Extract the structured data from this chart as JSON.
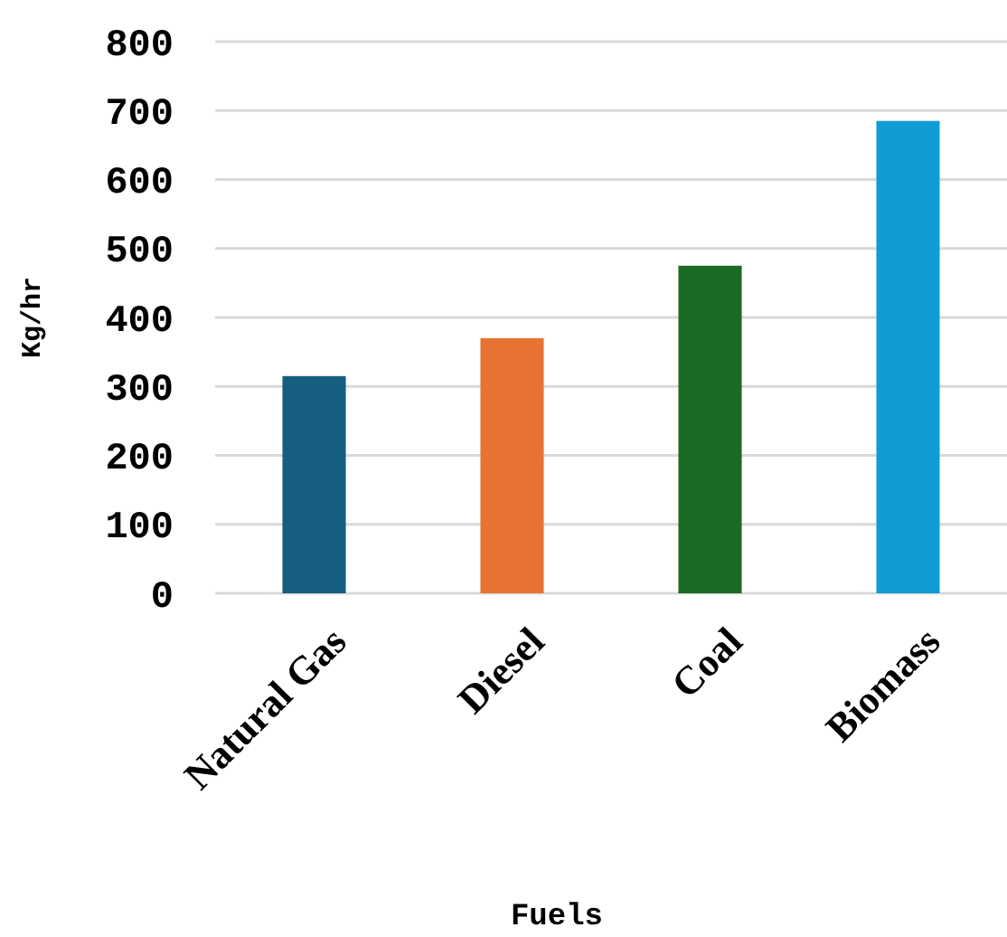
{
  "chart_data": {
    "type": "bar",
    "xlabel": "Fuels",
    "ylabel": "Kg/hr",
    "categories": [
      "Natural Gas",
      "Diesel",
      "Coal",
      "Biomass"
    ],
    "values": [
      315,
      370,
      475,
      685
    ],
    "colors": [
      "#165e80",
      "#e87233",
      "#1b6b25",
      "#109dd6"
    ],
    "ylim": [
      0,
      800
    ],
    "yticks": [
      0,
      100,
      200,
      300,
      400,
      500,
      600,
      700,
      800
    ],
    "grid": "y"
  }
}
